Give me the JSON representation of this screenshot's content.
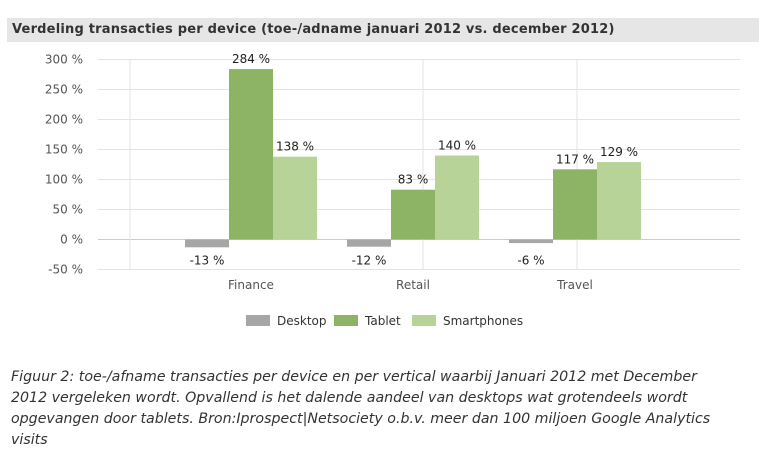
{
  "title": "Verdeling transacties per device (toe-/adname januari 2012 vs. december 2012)",
  "caption": "Figuur 2: toe-/afname transacties per device en per vertical waarbij Januari 2012 met December 2012 vergeleken wordt. Opvallend is het dalende aandeel van desktops wat grotendeels wordt opgevangen door tablets. Bron:Iprospect|Netsociety o.b.v. meer dan 100 miljoen Google Analytics visits",
  "chart_data": {
    "type": "bar",
    "title": "Verdeling transacties per device (toe-/adname januari 2012 vs. december 2012)",
    "xlabel": "",
    "ylabel": "",
    "categories": [
      "Finance",
      "Retail",
      "Travel"
    ],
    "series": [
      {
        "name": "Desktop",
        "values": [
          -13,
          -12,
          -6
        ],
        "labels": [
          "-13 %",
          "-12 %",
          "-6 %"
        ],
        "color": "#a6a6a6"
      },
      {
        "name": "Tablet",
        "values": [
          284,
          83,
          117
        ],
        "labels": [
          "284 %",
          "83 %",
          "117 %"
        ],
        "color": "#8db465"
      },
      {
        "name": "Smartphones",
        "values": [
          138,
          140,
          129
        ],
        "labels": [
          "138 %",
          "140 %",
          "129 %"
        ],
        "color": "#b7d398"
      }
    ],
    "ylim": [
      -50,
      300
    ],
    "yticks": [
      -50,
      0,
      50,
      100,
      150,
      200,
      250,
      300
    ],
    "ytick_labels": [
      "-50 %",
      "0 %",
      "50 %",
      "100 %",
      "150 %",
      "200 %",
      "250 %",
      "300 %"
    ],
    "grid": true,
    "legend": "bottom"
  }
}
